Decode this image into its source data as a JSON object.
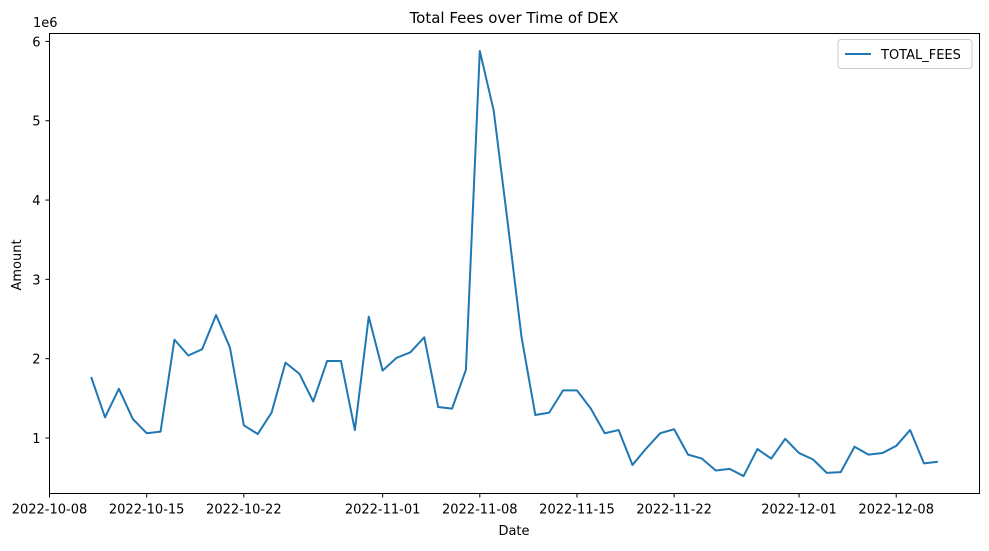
{
  "chart_data": {
    "type": "line",
    "title": "Total Fees over Time of DEX",
    "xlabel": "Date",
    "ylabel": "Amount",
    "y_offset_label": "1e6",
    "legend_position": "top-right",
    "grid": false,
    "xlim": [
      "2022-10-08",
      "2022-12-14"
    ],
    "ylim": [
      0.3,
      6.1
    ],
    "y_scale": "1e6",
    "x_ticks": [
      {
        "date": "2022-10-08",
        "label": "2022-10-08"
      },
      {
        "date": "2022-10-15",
        "label": "2022-10-15"
      },
      {
        "date": "2022-10-22",
        "label": "2022-10-22"
      },
      {
        "date": "2022-11-01",
        "label": "2022-11-01"
      },
      {
        "date": "2022-11-08",
        "label": "2022-11-08"
      },
      {
        "date": "2022-11-15",
        "label": "2022-11-15"
      },
      {
        "date": "2022-11-22",
        "label": "2022-11-22"
      },
      {
        "date": "2022-12-01",
        "label": "2022-12-01"
      },
      {
        "date": "2022-12-08",
        "label": "2022-12-08"
      }
    ],
    "y_ticks": [
      1,
      2,
      3,
      4,
      5,
      6
    ],
    "series": [
      {
        "name": "TOTAL_FEES",
        "color": "#1f77b4",
        "x": [
          "2022-10-11",
          "2022-10-12",
          "2022-10-13",
          "2022-10-14",
          "2022-10-15",
          "2022-10-16",
          "2022-10-17",
          "2022-10-18",
          "2022-10-19",
          "2022-10-20",
          "2022-10-21",
          "2022-10-22",
          "2022-10-23",
          "2022-10-24",
          "2022-10-25",
          "2022-10-26",
          "2022-10-27",
          "2022-10-28",
          "2022-10-29",
          "2022-10-30",
          "2022-10-31",
          "2022-11-01",
          "2022-11-02",
          "2022-11-03",
          "2022-11-04",
          "2022-11-05",
          "2022-11-06",
          "2022-11-07",
          "2022-11-08",
          "2022-11-09",
          "2022-11-10",
          "2022-11-11",
          "2022-11-12",
          "2022-11-13",
          "2022-11-14",
          "2022-11-15",
          "2022-11-16",
          "2022-11-17",
          "2022-11-18",
          "2022-11-19",
          "2022-11-20",
          "2022-11-21",
          "2022-11-22",
          "2022-11-23",
          "2022-11-24",
          "2022-11-25",
          "2022-11-26",
          "2022-11-27",
          "2022-11-28",
          "2022-11-29",
          "2022-11-30",
          "2022-12-01",
          "2022-12-02",
          "2022-12-03",
          "2022-12-04",
          "2022-12-05",
          "2022-12-06",
          "2022-12-07",
          "2022-12-08",
          "2022-12-09",
          "2022-12-10",
          "2022-12-11"
        ],
        "y": [
          1.77,
          1.26,
          1.62,
          1.24,
          1.06,
          1.08,
          2.24,
          2.04,
          2.12,
          2.55,
          2.14,
          1.16,
          1.05,
          1.32,
          1.95,
          1.81,
          1.46,
          1.97,
          1.97,
          1.1,
          2.53,
          1.85,
          2.01,
          2.08,
          2.27,
          1.39,
          1.37,
          1.86,
          5.88,
          5.13,
          3.73,
          2.28,
          1.29,
          1.32,
          1.6,
          1.6,
          1.37,
          1.06,
          1.1,
          0.66,
          0.87,
          1.06,
          1.11,
          0.79,
          0.74,
          0.59,
          0.61,
          0.52,
          0.86,
          0.74,
          0.99,
          0.81,
          0.73,
          0.56,
          0.57,
          0.89,
          0.79,
          0.81,
          0.9,
          1.1,
          0.68,
          0.7
        ]
      }
    ]
  }
}
